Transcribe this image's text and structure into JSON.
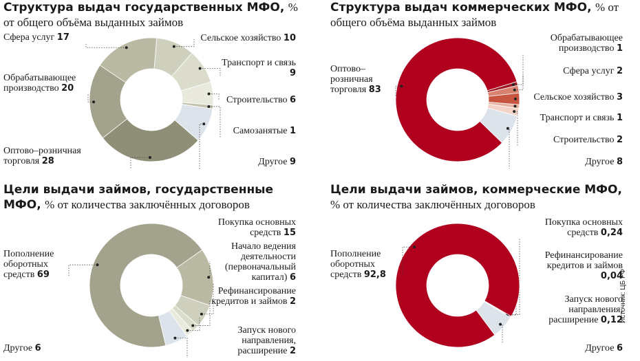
{
  "chart_data": [
    {
      "type": "donut",
      "title": "Структура выдач государственных МФО,",
      "subtitle": "% от общего объёма выданных займов",
      "categories": [
        "Сельское хозяйство",
        "Транспорт и связь",
        "Строительство",
        "Самозанятые",
        "Другое",
        "Оптово–розничная торговля",
        "Обрабатывающее производство",
        "Сфера услуг"
      ],
      "values": [
        10,
        9,
        6,
        1,
        9,
        28,
        20,
        17
      ],
      "colors": [
        "#cfcfbd",
        "#dcdccc",
        "#e9e9de",
        "#c4c4ae",
        "#dde3ea",
        "#8f8f78",
        "#a3a38d",
        "#b9b9a4"
      ]
    },
    {
      "type": "donut",
      "title": "Структура выдач коммерческих МФО,",
      "subtitle": "% от общего объёма выданных займов",
      "categories": [
        "Обрабатывающее производство",
        "Сфера услуг",
        "Сельское хозяйство",
        "Транспорт и связь",
        "Строительство",
        "Другое",
        "Оптово–розничная торговля"
      ],
      "values": [
        1,
        2,
        3,
        1,
        2,
        8,
        83
      ],
      "colors": [
        "#9e1a24",
        "#d9826f",
        "#c8553f",
        "#e8b0a0",
        "#f3d3c8",
        "#dde3ea",
        "#b0001e"
      ]
    },
    {
      "type": "donut",
      "title": "Цели выдачи займов, государственные МФО,",
      "subtitle": "% от количества заключённых договоров",
      "categories": [
        "Покупка основных средств",
        "Начало ведения деятельности (первоначальный капитал)",
        "Рефинансирование кредитов и займов",
        "Запуск нового направления, расширение",
        "Другое",
        "Пополнение оборотных средств"
      ],
      "values": [
        15,
        6,
        2,
        2,
        6,
        69
      ],
      "colors": [
        "#b9b9a4",
        "#cfcfbd",
        "#dcdccc",
        "#e9e9de",
        "#dde3ea",
        "#a3a38d"
      ]
    },
    {
      "type": "donut",
      "title": "Цели выдачи займов, коммерческие МФО,",
      "subtitle": "% от количества заключённых договоров",
      "categories": [
        "Покупка основных средств",
        "Рефинансирование кредитов и займов",
        "Запуск нового направления, расширение",
        "Другое",
        "Пополнение оборотных средств"
      ],
      "values": [
        0.24,
        0.04,
        0.12,
        6,
        92.8
      ],
      "value_labels": [
        "0,24",
        "0,04",
        "0,12",
        "6",
        "92,8"
      ],
      "colors": [
        "#c8553f",
        "#e8b0a0",
        "#9e1a24",
        "#dde3ea",
        "#b0001e"
      ]
    }
  ],
  "source": "Источник: ЦБ РФ"
}
